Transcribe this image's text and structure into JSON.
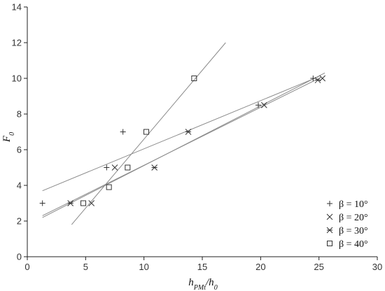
{
  "chart_data": {
    "type": "scatter",
    "xlabel": "h_PMt / h0",
    "ylabel": "F0",
    "xlim": [
      0,
      30
    ],
    "ylim": [
      0,
      14
    ],
    "xticks": [
      0,
      5,
      10,
      15,
      20,
      25,
      30
    ],
    "yticks": [
      0,
      2,
      4,
      6,
      8,
      10,
      12,
      14
    ],
    "grid": false,
    "legend_position": "bottom-right",
    "series": [
      {
        "name": "β = 10°",
        "marker": "plus",
        "points": [
          [
            1.3,
            3.0
          ],
          [
            6.8,
            5.0
          ],
          [
            8.2,
            7.0
          ],
          [
            19.8,
            8.5
          ],
          [
            24.5,
            10.0
          ]
        ],
        "fit": [
          [
            1.3,
            3.7
          ],
          [
            25.0,
            10.1
          ]
        ]
      },
      {
        "name": "β = 20°",
        "marker": "cross",
        "points": [
          [
            5.5,
            3.0
          ],
          [
            7.5,
            5.0
          ],
          [
            20.3,
            8.5
          ],
          [
            25.3,
            10.0
          ]
        ],
        "fit": [
          [
            1.3,
            2.2
          ],
          [
            25.5,
            10.3
          ]
        ]
      },
      {
        "name": "β = 30°",
        "marker": "asterisk",
        "points": [
          [
            3.7,
            3.0
          ],
          [
            10.9,
            5.0
          ],
          [
            13.8,
            7.0
          ],
          [
            24.9,
            9.9
          ]
        ],
        "fit": [
          [
            1.3,
            2.3
          ],
          [
            25.0,
            10.0
          ]
        ]
      },
      {
        "name": "β = 40°",
        "marker": "square",
        "points": [
          [
            4.8,
            3.0
          ],
          [
            7.0,
            3.9
          ],
          [
            8.6,
            5.0
          ],
          [
            10.2,
            7.0
          ],
          [
            14.3,
            10.0
          ]
        ],
        "fit": [
          [
            3.8,
            1.8
          ],
          [
            17.0,
            12.0
          ]
        ]
      }
    ]
  },
  "axes_text": {
    "ylabel_main": "F",
    "ylabel_sub": "0",
    "xlabel_main": "h",
    "xlabel_sub": "PMt",
    "xlabel_rest": "/h",
    "xlabel_rest_sub": "0"
  },
  "colors": {
    "axis": "#222222",
    "marker": "#333333",
    "fit_line": "#8a8a8a"
  }
}
